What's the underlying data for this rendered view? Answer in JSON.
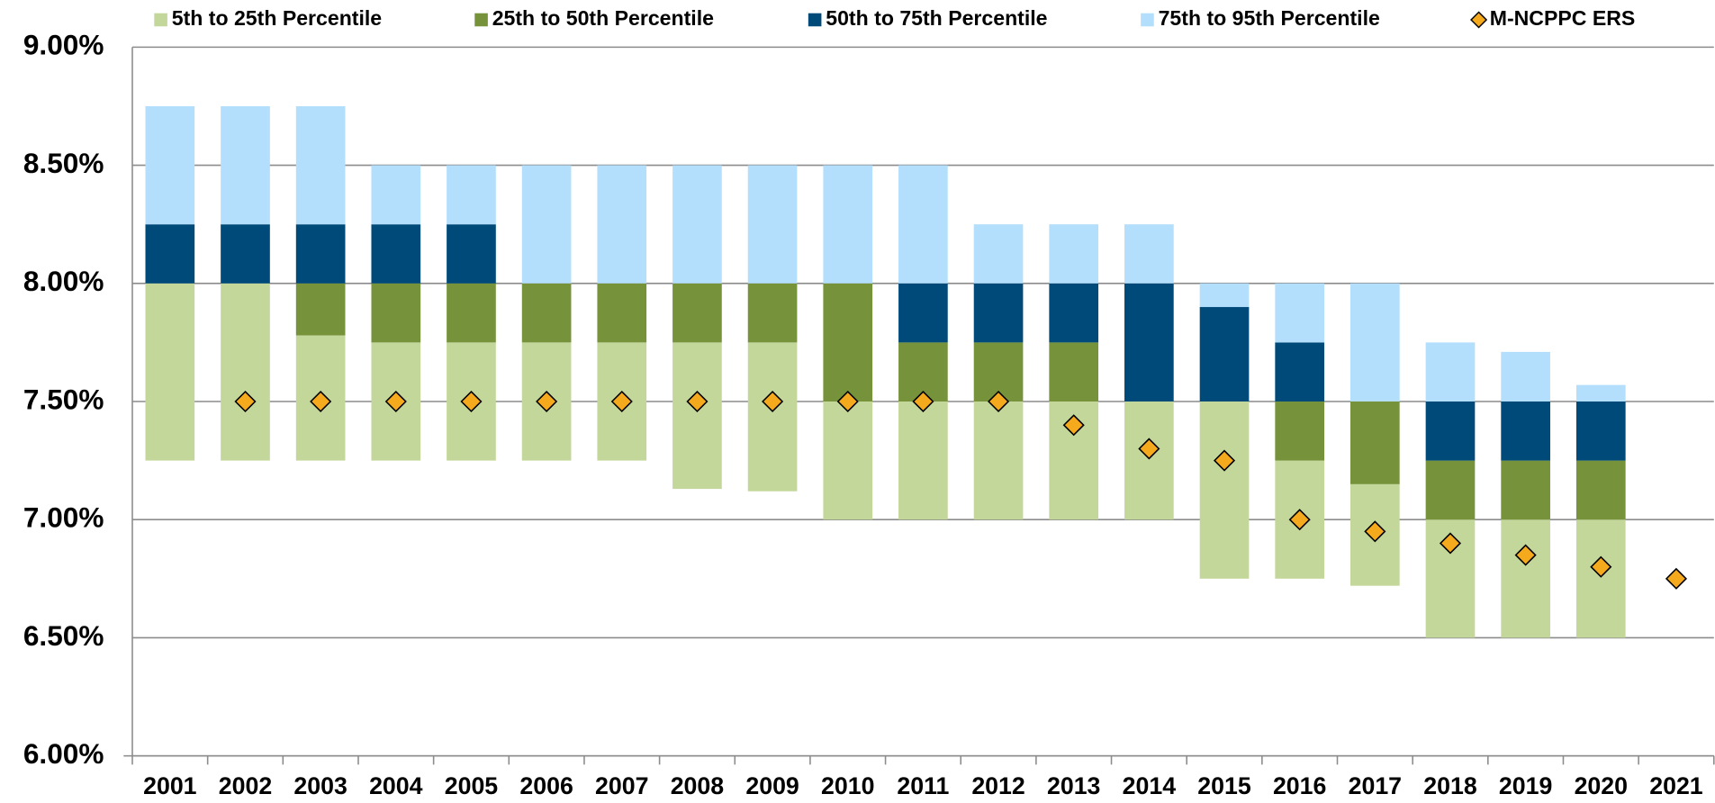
{
  "chart_data": {
    "type": "bar",
    "categories": [
      "2001",
      "2002",
      "2003",
      "2004",
      "2005",
      "2006",
      "2007",
      "2008",
      "2009",
      "2010",
      "2011",
      "2012",
      "2013",
      "2014",
      "2015",
      "2016",
      "2017",
      "2018",
      "2019",
      "2020",
      "2021"
    ],
    "series": [
      {
        "name": "5th to 25th Percentile",
        "color": "#c4d79b",
        "values": [
          [
            7.25,
            8.0
          ],
          [
            7.25,
            8.0
          ],
          [
            7.25,
            7.78
          ],
          [
            7.25,
            7.75
          ],
          [
            7.25,
            7.75
          ],
          [
            7.25,
            7.75
          ],
          [
            7.25,
            7.75
          ],
          [
            7.13,
            7.75
          ],
          [
            7.12,
            7.75
          ],
          [
            7.0,
            7.5
          ],
          [
            7.0,
            7.5
          ],
          [
            7.0,
            7.5
          ],
          [
            7.0,
            7.5
          ],
          [
            7.0,
            7.5
          ],
          [
            6.75,
            7.5
          ],
          [
            6.75,
            7.25
          ],
          [
            6.72,
            7.15
          ],
          [
            6.5,
            7.0
          ],
          [
            6.5,
            7.0
          ],
          [
            6.5,
            7.0
          ],
          null
        ]
      },
      {
        "name": "25th to 50th Percentile",
        "color": "#76933c",
        "values": [
          null,
          null,
          [
            7.78,
            8.0
          ],
          [
            7.75,
            8.0
          ],
          [
            7.75,
            8.0
          ],
          [
            7.75,
            8.0
          ],
          [
            7.75,
            8.0
          ],
          [
            7.75,
            8.0
          ],
          [
            7.75,
            8.0
          ],
          [
            7.5,
            8.0
          ],
          [
            7.5,
            7.75
          ],
          [
            7.5,
            7.75
          ],
          [
            7.5,
            7.75
          ],
          null,
          null,
          [
            7.25,
            7.5
          ],
          [
            7.15,
            7.5
          ],
          [
            7.0,
            7.25
          ],
          [
            7.0,
            7.25
          ],
          [
            7.0,
            7.25
          ],
          null
        ]
      },
      {
        "name": "50th to 75th Percentile",
        "color": "#004a7a",
        "values": [
          [
            8.0,
            8.25
          ],
          [
            8.0,
            8.25
          ],
          [
            8.0,
            8.25
          ],
          [
            8.0,
            8.25
          ],
          [
            8.0,
            8.25
          ],
          null,
          null,
          null,
          null,
          null,
          [
            7.75,
            8.0
          ],
          [
            7.75,
            8.0
          ],
          [
            7.75,
            8.0
          ],
          [
            7.5,
            8.0
          ],
          [
            7.5,
            7.9
          ],
          [
            7.5,
            7.75
          ],
          null,
          [
            7.25,
            7.5
          ],
          [
            7.25,
            7.5
          ],
          [
            7.25,
            7.5
          ],
          null
        ]
      },
      {
        "name": "75th to 95th Percentile",
        "color": "#b3dffc",
        "values": [
          [
            8.25,
            8.75
          ],
          [
            8.25,
            8.75
          ],
          [
            8.25,
            8.75
          ],
          [
            8.25,
            8.5
          ],
          [
            8.25,
            8.5
          ],
          [
            8.0,
            8.5
          ],
          [
            8.0,
            8.5
          ],
          [
            8.0,
            8.5
          ],
          [
            8.0,
            8.5
          ],
          [
            8.0,
            8.5
          ],
          [
            8.0,
            8.5
          ],
          [
            8.0,
            8.25
          ],
          [
            8.0,
            8.25
          ],
          [
            8.0,
            8.25
          ],
          [
            7.9,
            8.0
          ],
          [
            7.75,
            8.0
          ],
          [
            7.5,
            8.0
          ],
          [
            7.5,
            7.75
          ],
          [
            7.5,
            7.71
          ],
          [
            7.5,
            7.57
          ],
          null
        ]
      },
      {
        "name": "M-NCPPC ERS",
        "type": "scatter",
        "marker": "diamond",
        "color": "#f5a91c",
        "values": [
          null,
          7.5,
          7.5,
          7.5,
          7.5,
          7.5,
          7.5,
          7.5,
          7.5,
          7.5,
          7.5,
          7.5,
          7.4,
          7.3,
          7.25,
          7.0,
          6.95,
          6.9,
          6.85,
          6.8,
          6.75
        ]
      }
    ],
    "ylim": [
      6,
      9
    ],
    "yticks": [
      {
        "value": 6,
        "label": "6.00%"
      },
      {
        "value": 6.5,
        "label": "6.50%"
      },
      {
        "value": 7,
        "label": "7.00%"
      },
      {
        "value": 7.5,
        "label": "7.50%"
      },
      {
        "value": 8,
        "label": "8.00%"
      },
      {
        "value": 8.5,
        "label": "8.50%"
      },
      {
        "value": 9,
        "label": "9.00%"
      }
    ],
    "grid": true,
    "legend": "top"
  }
}
